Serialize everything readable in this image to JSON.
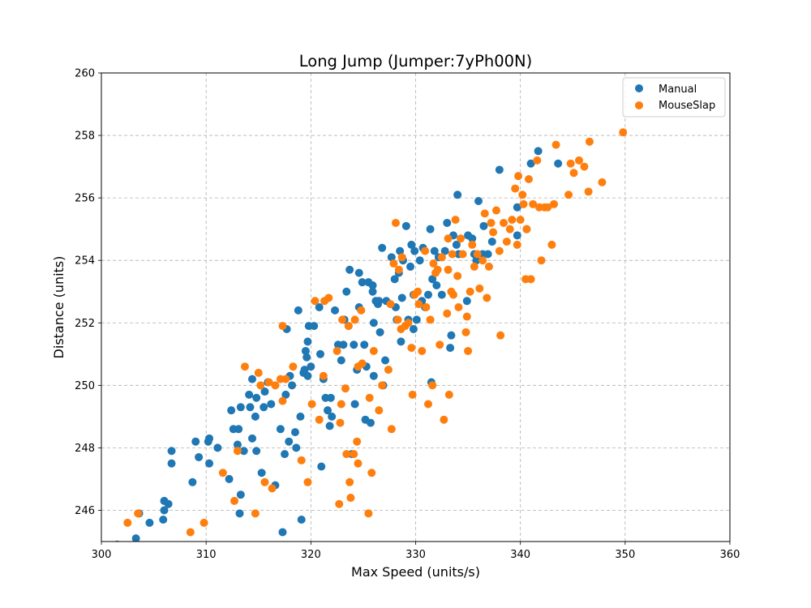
{
  "chart_data": {
    "type": "scatter",
    "title": "Long Jump (Jumper:7yPh00N)",
    "xlabel": "Max Speed (units/s)",
    "ylabel": "Distance (units)",
    "xlim": [
      300,
      360
    ],
    "ylim": [
      245,
      260
    ],
    "xticks": [
      "300",
      "310",
      "320",
      "330",
      "340",
      "350",
      "360"
    ],
    "yticks": [
      "246",
      "248",
      "250",
      "252",
      "254",
      "256",
      "258",
      "260"
    ],
    "grid": true,
    "legend_position": "top-right",
    "series": [
      {
        "name": "Manual",
        "color": "#1f77b4",
        "points": [
          [
            301.5,
            244.9
          ],
          [
            303.3,
            245.1
          ],
          [
            303.6,
            245.9
          ],
          [
            304.6,
            245.6
          ],
          [
            305.9,
            245.7
          ],
          [
            306.0,
            246.0
          ],
          [
            306.0,
            246.3
          ],
          [
            306.4,
            246.2
          ],
          [
            306.7,
            247.9
          ],
          [
            306.7,
            247.5
          ],
          [
            308.7,
            246.9
          ],
          [
            309.0,
            248.2
          ],
          [
            309.3,
            247.7
          ],
          [
            310.2,
            248.2
          ],
          [
            310.3,
            247.5
          ],
          [
            310.3,
            248.3
          ],
          [
            311.1,
            248.0
          ],
          [
            312.2,
            247.0
          ],
          [
            312.4,
            249.2
          ],
          [
            312.6,
            248.6
          ],
          [
            313.0,
            248.1
          ],
          [
            313.1,
            248.6
          ],
          [
            313.2,
            245.9
          ],
          [
            313.3,
            246.5
          ],
          [
            313.3,
            249.3
          ],
          [
            313.6,
            247.9
          ],
          [
            314.1,
            249.7
          ],
          [
            314.2,
            249.3
          ],
          [
            314.4,
            250.2
          ],
          [
            314.4,
            248.3
          ],
          [
            314.7,
            249.0
          ],
          [
            314.8,
            247.9
          ],
          [
            314.8,
            249.6
          ],
          [
            315.3,
            247.2
          ],
          [
            315.5,
            249.3
          ],
          [
            315.6,
            249.8
          ],
          [
            315.9,
            250.1
          ],
          [
            316.2,
            249.4
          ],
          [
            316.6,
            246.8
          ],
          [
            317.1,
            248.6
          ],
          [
            317.3,
            245.3
          ],
          [
            317.5,
            247.8
          ],
          [
            317.6,
            249.7
          ],
          [
            317.7,
            251.8
          ],
          [
            317.9,
            248.2
          ],
          [
            318.0,
            250.3
          ],
          [
            318.2,
            250.0
          ],
          [
            318.5,
            248.5
          ],
          [
            318.6,
            248.0
          ],
          [
            318.8,
            252.4
          ],
          [
            319.0,
            249.0
          ],
          [
            319.1,
            245.7
          ],
          [
            319.3,
            250.4
          ],
          [
            319.4,
            250.5
          ],
          [
            319.5,
            251.1
          ],
          [
            319.6,
            250.9
          ],
          [
            319.7,
            251.4
          ],
          [
            319.7,
            250.3
          ],
          [
            319.8,
            251.9
          ],
          [
            320.0,
            250.6
          ],
          [
            320.3,
            251.9
          ],
          [
            320.8,
            252.5
          ],
          [
            320.9,
            251.0
          ],
          [
            321.0,
            247.4
          ],
          [
            321.2,
            250.2
          ],
          [
            321.4,
            249.6
          ],
          [
            321.6,
            249.2
          ],
          [
            321.8,
            248.7
          ],
          [
            321.9,
            249.6
          ],
          [
            322.0,
            249.0
          ],
          [
            322.3,
            252.4
          ],
          [
            322.6,
            251.3
          ],
          [
            322.9,
            250.8
          ],
          [
            323.1,
            251.3
          ],
          [
            323.2,
            252.1
          ],
          [
            323.4,
            253.0
          ],
          [
            323.6,
            251.9
          ],
          [
            323.7,
            253.7
          ],
          [
            323.9,
            247.8
          ],
          [
            324.1,
            251.3
          ],
          [
            324.2,
            249.4
          ],
          [
            324.4,
            250.5
          ],
          [
            324.6,
            252.5
          ],
          [
            324.6,
            253.6
          ],
          [
            324.9,
            253.3
          ],
          [
            325.1,
            251.3
          ],
          [
            325.2,
            248.9
          ],
          [
            325.3,
            250.6
          ],
          [
            325.5,
            253.3
          ],
          [
            325.7,
            248.8
          ],
          [
            325.9,
            253.2
          ],
          [
            325.9,
            253.0
          ],
          [
            326.0,
            252.0
          ],
          [
            326.0,
            250.3
          ],
          [
            326.2,
            252.7
          ],
          [
            326.4,
            252.6
          ],
          [
            326.5,
            252.7
          ],
          [
            326.6,
            251.7
          ],
          [
            326.8,
            254.4
          ],
          [
            326.9,
            250.0
          ],
          [
            327.1,
            250.8
          ],
          [
            327.2,
            252.7
          ],
          [
            327.7,
            254.1
          ],
          [
            328.0,
            253.4
          ],
          [
            328.1,
            252.5
          ],
          [
            328.2,
            252.1
          ],
          [
            328.4,
            253.6
          ],
          [
            328.5,
            254.3
          ],
          [
            328.6,
            251.4
          ],
          [
            328.7,
            252.8
          ],
          [
            328.8,
            254.0
          ],
          [
            329.1,
            255.1
          ],
          [
            329.3,
            252.1
          ],
          [
            329.5,
            253.8
          ],
          [
            329.6,
            254.5
          ],
          [
            329.8,
            251.8
          ],
          [
            329.8,
            252.9
          ],
          [
            329.9,
            254.3
          ],
          [
            330.1,
            252.1
          ],
          [
            330.4,
            254.0
          ],
          [
            330.6,
            252.7
          ],
          [
            330.7,
            254.4
          ],
          [
            330.9,
            252.5
          ],
          [
            331.2,
            252.9
          ],
          [
            331.4,
            255.0
          ],
          [
            331.5,
            250.1
          ],
          [
            331.6,
            253.4
          ],
          [
            331.8,
            254.3
          ],
          [
            332.0,
            253.2
          ],
          [
            332.2,
            254.1
          ],
          [
            332.5,
            252.9
          ],
          [
            332.8,
            254.3
          ],
          [
            333.0,
            255.2
          ],
          [
            333.3,
            251.2
          ],
          [
            333.4,
            251.6
          ],
          [
            333.6,
            254.8
          ],
          [
            333.9,
            254.5
          ],
          [
            334.0,
            256.1
          ],
          [
            334.1,
            254.2
          ],
          [
            334.9,
            252.7
          ],
          [
            335.0,
            254.8
          ],
          [
            335.4,
            254.7
          ],
          [
            335.6,
            254.2
          ],
          [
            335.8,
            254.0
          ],
          [
            336.0,
            255.9
          ],
          [
            336.4,
            254.2
          ],
          [
            336.5,
            255.1
          ],
          [
            336.9,
            254.2
          ],
          [
            337.3,
            254.6
          ],
          [
            338.0,
            256.9
          ],
          [
            339.7,
            254.8
          ],
          [
            339.7,
            255.7
          ],
          [
            340.6,
            255.0
          ],
          [
            341.0,
            257.1
          ],
          [
            341.7,
            257.5
          ],
          [
            343.6,
            257.1
          ]
        ]
      },
      {
        "name": "MouseSlap",
        "color": "#ff7f0e",
        "points": [
          [
            302.5,
            245.6
          ],
          [
            303.5,
            245.9
          ],
          [
            308.5,
            245.3
          ],
          [
            309.8,
            245.6
          ],
          [
            311.6,
            247.2
          ],
          [
            312.7,
            246.3
          ],
          [
            313.0,
            247.9
          ],
          [
            313.7,
            250.6
          ],
          [
            314.7,
            245.9
          ],
          [
            315.0,
            250.4
          ],
          [
            315.2,
            250.0
          ],
          [
            315.6,
            246.9
          ],
          [
            316.0,
            250.1
          ],
          [
            316.3,
            246.7
          ],
          [
            316.6,
            250.0
          ],
          [
            317.1,
            250.2
          ],
          [
            317.3,
            249.5
          ],
          [
            317.3,
            251.9
          ],
          [
            317.6,
            250.2
          ],
          [
            318.3,
            250.6
          ],
          [
            319.1,
            247.6
          ],
          [
            319.7,
            246.9
          ],
          [
            320.1,
            249.4
          ],
          [
            320.4,
            252.7
          ],
          [
            320.8,
            248.9
          ],
          [
            321.2,
            250.3
          ],
          [
            321.3,
            252.7
          ],
          [
            321.7,
            252.8
          ],
          [
            322.5,
            251.1
          ],
          [
            322.7,
            246.2
          ],
          [
            322.8,
            248.8
          ],
          [
            322.9,
            249.4
          ],
          [
            323.0,
            252.1
          ],
          [
            323.3,
            249.9
          ],
          [
            323.4,
            247.8
          ],
          [
            323.6,
            251.9
          ],
          [
            323.7,
            246.9
          ],
          [
            323.8,
            246.4
          ],
          [
            324.1,
            247.8
          ],
          [
            324.2,
            252.1
          ],
          [
            324.4,
            248.2
          ],
          [
            324.5,
            247.5
          ],
          [
            324.5,
            250.6
          ],
          [
            324.8,
            252.4
          ],
          [
            324.9,
            250.7
          ],
          [
            325.5,
            245.9
          ],
          [
            325.6,
            249.6
          ],
          [
            325.8,
            247.2
          ],
          [
            326.0,
            251.1
          ],
          [
            326.5,
            249.2
          ],
          [
            326.8,
            250.0
          ],
          [
            327.4,
            250.5
          ],
          [
            327.6,
            252.6
          ],
          [
            327.7,
            248.6
          ],
          [
            327.9,
            253.9
          ],
          [
            328.1,
            255.2
          ],
          [
            328.3,
            252.1
          ],
          [
            328.4,
            253.7
          ],
          [
            328.6,
            251.8
          ],
          [
            328.7,
            254.1
          ],
          [
            329.0,
            251.9
          ],
          [
            329.3,
            252.0
          ],
          [
            329.6,
            251.2
          ],
          [
            329.7,
            249.7
          ],
          [
            329.9,
            252.9
          ],
          [
            330.2,
            253.0
          ],
          [
            330.3,
            252.6
          ],
          [
            330.6,
            251.1
          ],
          [
            330.9,
            254.3
          ],
          [
            331.0,
            252.5
          ],
          [
            331.2,
            249.4
          ],
          [
            331.4,
            252.1
          ],
          [
            331.6,
            250.0
          ],
          [
            331.7,
            253.9
          ],
          [
            331.9,
            253.6
          ],
          [
            332.1,
            253.7
          ],
          [
            332.3,
            251.3
          ],
          [
            332.5,
            254.1
          ],
          [
            332.7,
            248.9
          ],
          [
            333.0,
            252.3
          ],
          [
            333.1,
            254.7
          ],
          [
            333.1,
            253.7
          ],
          [
            333.2,
            249.7
          ],
          [
            333.4,
            253.0
          ],
          [
            333.5,
            254.2
          ],
          [
            333.6,
            252.9
          ],
          [
            333.8,
            255.3
          ],
          [
            334.0,
            253.5
          ],
          [
            334.1,
            252.5
          ],
          [
            334.3,
            254.7
          ],
          [
            334.5,
            254.2
          ],
          [
            334.8,
            251.7
          ],
          [
            334.9,
            252.2
          ],
          [
            335.0,
            251.1
          ],
          [
            335.2,
            253.0
          ],
          [
            335.4,
            254.5
          ],
          [
            335.6,
            253.8
          ],
          [
            335.9,
            254.2
          ],
          [
            336.1,
            253.1
          ],
          [
            336.4,
            254.0
          ],
          [
            336.6,
            255.5
          ],
          [
            336.8,
            252.8
          ],
          [
            337.0,
            253.8
          ],
          [
            337.2,
            255.2
          ],
          [
            337.4,
            254.9
          ],
          [
            337.7,
            255.6
          ],
          [
            338.0,
            254.3
          ],
          [
            338.1,
            251.6
          ],
          [
            338.4,
            255.2
          ],
          [
            338.7,
            254.6
          ],
          [
            339.0,
            255.0
          ],
          [
            339.2,
            255.3
          ],
          [
            339.5,
            256.3
          ],
          [
            339.7,
            254.5
          ],
          [
            339.8,
            256.7
          ],
          [
            340.0,
            255.3
          ],
          [
            340.2,
            256.1
          ],
          [
            340.3,
            255.8
          ],
          [
            340.5,
            253.4
          ],
          [
            340.6,
            255.0
          ],
          [
            340.8,
            256.6
          ],
          [
            341.0,
            253.4
          ],
          [
            341.2,
            255.8
          ],
          [
            341.6,
            257.2
          ],
          [
            341.8,
            255.7
          ],
          [
            342.0,
            254.0
          ],
          [
            342.3,
            255.7
          ],
          [
            342.6,
            255.7
          ],
          [
            343.0,
            254.5
          ],
          [
            343.2,
            255.8
          ],
          [
            343.4,
            257.7
          ],
          [
            344.6,
            256.1
          ],
          [
            344.8,
            257.1
          ],
          [
            345.1,
            256.8
          ],
          [
            345.6,
            257.2
          ],
          [
            346.1,
            257.0
          ],
          [
            346.5,
            256.2
          ],
          [
            346.6,
            257.8
          ],
          [
            347.8,
            256.5
          ],
          [
            349.8,
            258.1
          ]
        ]
      }
    ]
  }
}
